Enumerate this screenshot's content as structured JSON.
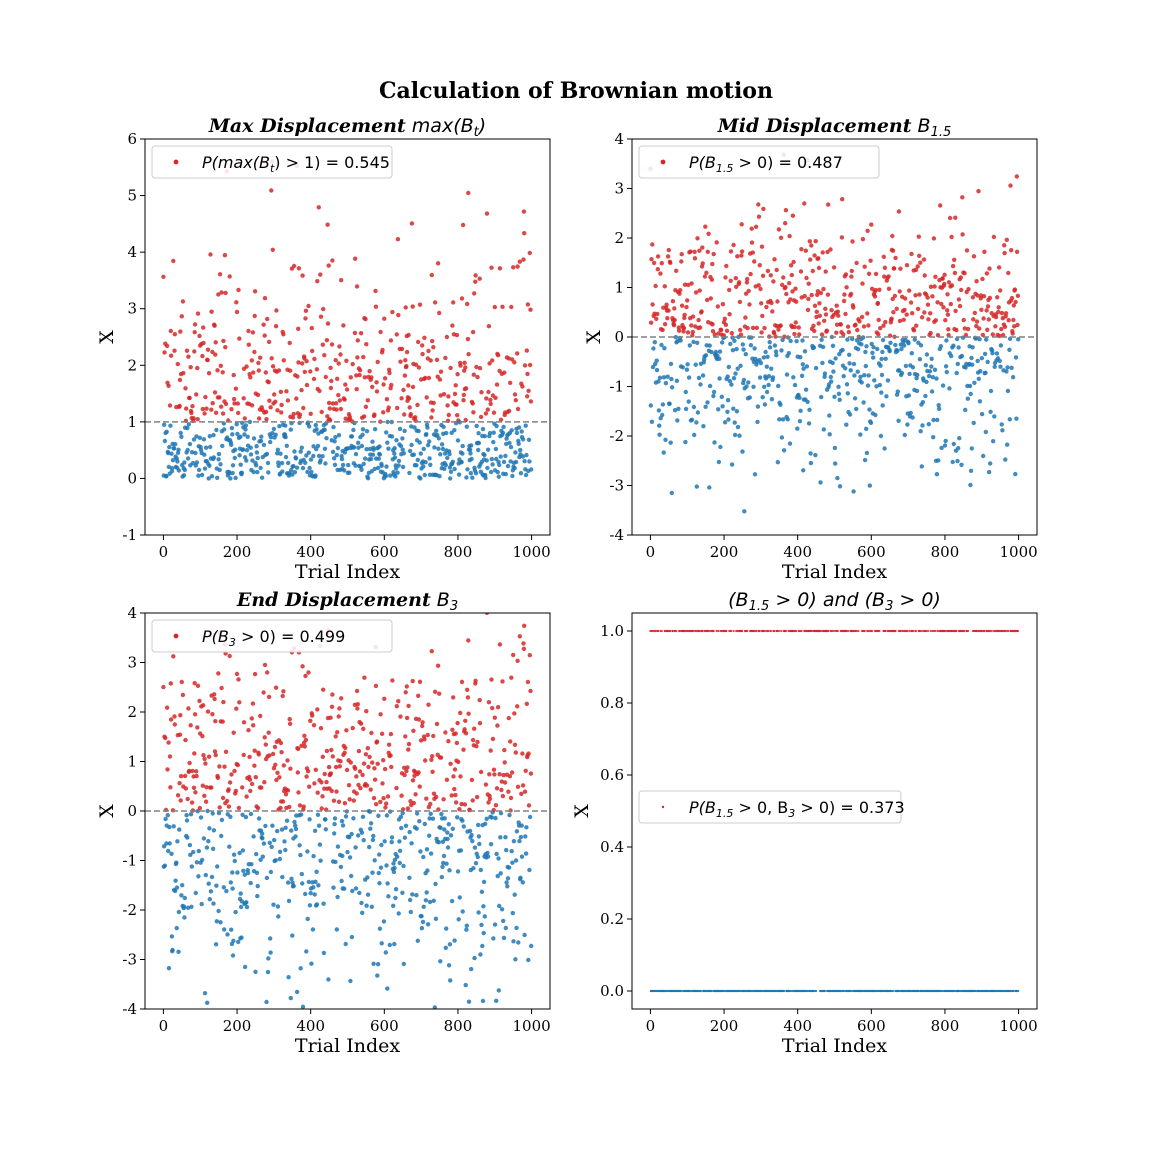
{
  "figure": {
    "title": "Calculation of Brownian motion"
  },
  "colors": {
    "positive": "#d62728",
    "negative": "#1f77b4",
    "threshold": "#808080"
  },
  "chart_data": [
    {
      "type": "scatter",
      "title_bold": "Max Displacement",
      "title_rest": "max(B",
      "title_sub": "t",
      "title_tail": ")",
      "xlabel": "Trial Index",
      "ylabel": "X",
      "xlim": [
        -50,
        1050
      ],
      "ylim": [
        -1,
        6
      ],
      "xticks": [
        0,
        200,
        400,
        600,
        800,
        1000
      ],
      "yticks": [
        -1,
        0,
        1,
        2,
        3,
        4,
        5,
        6
      ],
      "threshold": 1,
      "n_points": 1000,
      "probability": 0.545,
      "legend": {
        "label": "P(max(B",
        "sub": "t",
        "tail": ") > 1) = 0.545",
        "placement": "upper-left"
      }
    },
    {
      "type": "scatter",
      "title_bold": "Mid Displacement",
      "title_rest": "B",
      "title_sub": "1.5",
      "title_tail": "",
      "xlabel": "Trial Index",
      "ylabel": "X",
      "xlim": [
        -50,
        1050
      ],
      "ylim": [
        -4,
        4
      ],
      "xticks": [
        0,
        200,
        400,
        600,
        800,
        1000
      ],
      "yticks": [
        -4,
        -3,
        -2,
        -1,
        0,
        1,
        2,
        3,
        4
      ],
      "threshold": 0,
      "n_points": 1000,
      "probability": 0.487,
      "legend": {
        "label": "P(B",
        "sub": "1.5",
        "tail": " > 0) = 0.487",
        "placement": "upper-left"
      }
    },
    {
      "type": "scatter",
      "title_bold": "End Displacement",
      "title_rest": "B",
      "title_sub": "3",
      "title_tail": "",
      "xlabel": "Trial Index",
      "ylabel": "X",
      "xlim": [
        -50,
        1050
      ],
      "ylim": [
        -4,
        4
      ],
      "xticks": [
        0,
        200,
        400,
        600,
        800,
        1000
      ],
      "yticks": [
        -4,
        -3,
        -2,
        -1,
        0,
        1,
        2,
        3,
        4
      ],
      "threshold": 0,
      "n_points": 1000,
      "probability": 0.499,
      "legend": {
        "label": "P(B",
        "sub": "3",
        "tail": " > 0) = 0.499",
        "placement": "upper-left"
      }
    },
    {
      "type": "scatter",
      "title_bold": "",
      "title_rest": "(B",
      "title_sub": "1.5",
      "title_tail": " > 0) and (B",
      "title_sub2": "3",
      "title_tail2": " > 0)",
      "xlabel": "Trial Index",
      "ylabel": "X",
      "xlim": [
        -50,
        1050
      ],
      "ylim": [
        -0.05,
        1.05
      ],
      "xticks": [
        0,
        200,
        400,
        600,
        800,
        1000
      ],
      "yticks": [
        0.0,
        0.2,
        0.4,
        0.6,
        0.8,
        1.0
      ],
      "ytick_labels": [
        "0.0",
        "0.2",
        "0.4",
        "0.6",
        "0.8",
        "1.0"
      ],
      "n_points": 1000,
      "probability": 0.373,
      "legend": {
        "label": "P(B",
        "sub": "1.5",
        "tail": " > 0, B",
        "sub2": "3",
        "tail2": " > 0) = 0.373",
        "placement": "center-left"
      }
    }
  ]
}
